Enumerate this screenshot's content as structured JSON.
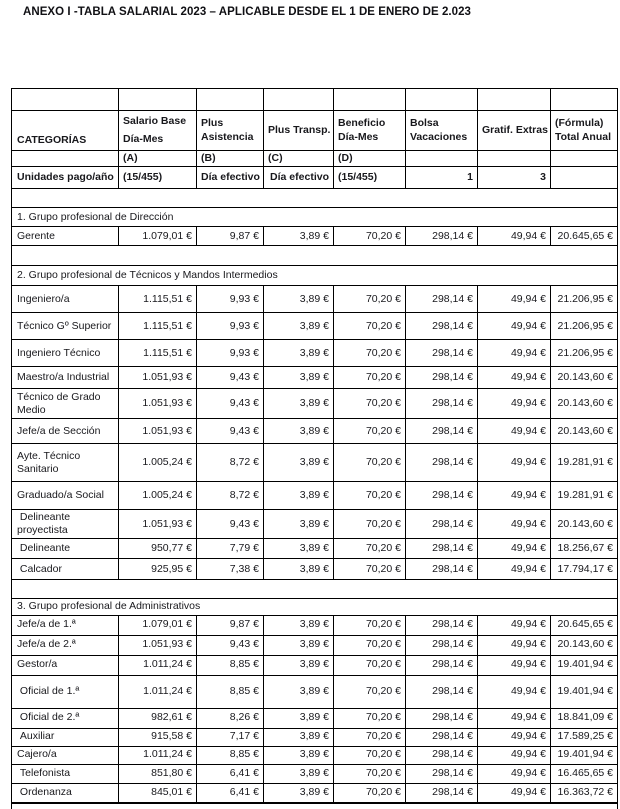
{
  "document": {
    "title": "ANEXO I -TABLA SALARIAL 2023 – APLICABLE DESDE EL 1 DE ENERO DE 2.023"
  },
  "table": {
    "header": {
      "categories": "CATEGORÍAS",
      "salario_line1": "Salario Base",
      "salario_line2": "Día-Mes",
      "plus_asistencia": "Plus Asistencia",
      "plus_transp": "Plus Transp.",
      "beneficio": "Beneficio Día-Mes",
      "bolsa": "Bolsa Vacaciones",
      "gratif": "Gratif. Extras",
      "formula": "(Fórmula) Total Anual",
      "letters": [
        "(A)",
        "(B)",
        "(C)",
        "(D)"
      ],
      "units_label": "Unidades pago/año",
      "units": [
        "(15/455)",
        "Día efectivo",
        "Día efectivo",
        "(15/455)",
        "1",
        "3",
        ""
      ]
    },
    "groups": [
      {
        "title": "1. Grupo profesional de Dirección",
        "rows": [
          {
            "label": "Gerente",
            "values": [
              "1.079,01 €",
              "9,87 €",
              "3,89 €",
              "70,20 €",
              "298,14 €",
              "49,94 €",
              "20.645,65 €"
            ]
          }
        ]
      },
      {
        "title": "2. Grupo profesional de Técnicos y Mandos Intermedios",
        "rows": [
          {
            "label": "Ingeniero/a",
            "values": [
              "1.115,51 €",
              "9,93 €",
              "3,89 €",
              "70,20 €",
              "298,14 €",
              "49,94 €",
              "21.206,95 €"
            ]
          },
          {
            "label": "Técnico Gº Superior",
            "values": [
              "1.115,51 €",
              "9,93 €",
              "3,89 €",
              "70,20 €",
              "298,14 €",
              "49,94 €",
              "21.206,95 €"
            ]
          },
          {
            "label": "Ingeniero Técnico",
            "values": [
              "1.115,51 €",
              "9,93 €",
              "3,89 €",
              "70,20 €",
              "298,14 €",
              "49,94 €",
              "21.206,95 €"
            ]
          },
          {
            "label": "Maestro/a Industrial",
            "values": [
              "1.051,93 €",
              "9,43 €",
              "3,89 €",
              "70,20 €",
              "298,14 €",
              "49,94 €",
              "20.143,60 €"
            ]
          },
          {
            "label": "Técnico de Grado Medio",
            "values": [
              "1.051,93 €",
              "9,43 €",
              "3,89 €",
              "70,20 €",
              "298,14 €",
              "49,94 €",
              "20.143,60 €"
            ]
          },
          {
            "label": "Jefe/a de Sección",
            "values": [
              "1.051,93 €",
              "9,43 €",
              "3,89 €",
              "70,20 €",
              "298,14 €",
              "49,94 €",
              "20.143,60 €"
            ]
          },
          {
            "label": "Ayte. Técnico Sanitario",
            "values": [
              "1.005,24 €",
              "8,72 €",
              "3,89 €",
              "70,20 €",
              "298,14 €",
              "49,94 €",
              "19.281,91 €"
            ]
          },
          {
            "label": "Graduado/a Social",
            "values": [
              "1.005,24 €",
              "8,72 €",
              "3,89 €",
              "70,20 €",
              "298,14 €",
              "49,94 €",
              "19.281,91 €"
            ]
          },
          {
            "label": " Delineante proyectista",
            "values": [
              "1.051,93 €",
              "9,43 €",
              "3,89 €",
              "70,20 €",
              "298,14 €",
              "49,94 €",
              "20.143,60 €"
            ]
          },
          {
            "label": " Delineante",
            "values": [
              "950,77 €",
              "7,79 €",
              "3,89 €",
              "70,20 €",
              "298,14 €",
              "49,94 €",
              "18.256,67 €"
            ]
          },
          {
            "label": " Calcador",
            "values": [
              "925,95 €",
              "7,38 €",
              "3,89 €",
              "70,20 €",
              "298,14 €",
              "49,94 €",
              "17.794,17 €"
            ]
          }
        ]
      },
      {
        "title": "3. Grupo profesional de Administrativos",
        "rows": [
          {
            "label": "Jefe/a de 1.ª",
            "values": [
              "1.079,01 €",
              "9,87 €",
              "3,89 €",
              "70,20 €",
              "298,14 €",
              "49,94 €",
              "20.645,65 €"
            ]
          },
          {
            "label": "Jefe/a de 2.ª",
            "values": [
              "1.051,93 €",
              "9,43 €",
              "3,89 €",
              "70,20 €",
              "298,14 €",
              "49,94 €",
              "20.143,60 €"
            ]
          },
          {
            "label": "Gestor/a",
            "values": [
              "1.011,24 €",
              "8,85 €",
              "3,89 €",
              "70,20 €",
              "298,14 €",
              "49,94 €",
              "19.401,94 €"
            ]
          },
          {
            "label": " Oficial de 1.ª",
            "values": [
              "1.011,24 €",
              "8,85 €",
              "3,89 €",
              "70,20 €",
              "298,14 €",
              "49,94 €",
              "19.401,94 €"
            ]
          },
          {
            "label": " Oficial de 2.ª",
            "values": [
              "982,61 €",
              "8,26 €",
              "3,89 €",
              "70,20 €",
              "298,14 €",
              "49,94 €",
              "18.841,09 €"
            ]
          },
          {
            "label": " Auxiliar",
            "values": [
              "915,58 €",
              "7,17 €",
              "3,89 €",
              "70,20 €",
              "298,14 €",
              "49,94 €",
              "17.589,25 €"
            ]
          },
          {
            "label": "Cajero/a",
            "values": [
              "1.011,24 €",
              "8,85 €",
              "3,89 €",
              "70,20 €",
              "298,14 €",
              "49,94 €",
              "19.401,94 €"
            ]
          },
          {
            "label": " Telefonista",
            "values": [
              "851,80 €",
              "6,41 €",
              "3,89 €",
              "70,20 €",
              "298,14 €",
              "49,94 €",
              "16.465,65 €"
            ]
          },
          {
            "label": " Ordenanza",
            "values": [
              "845,01 €",
              "6,41 €",
              "3,89 €",
              "70,20 €",
              "298,14 €",
              "49,94 €",
              "16.363,72 €"
            ]
          }
        ]
      }
    ]
  }
}
